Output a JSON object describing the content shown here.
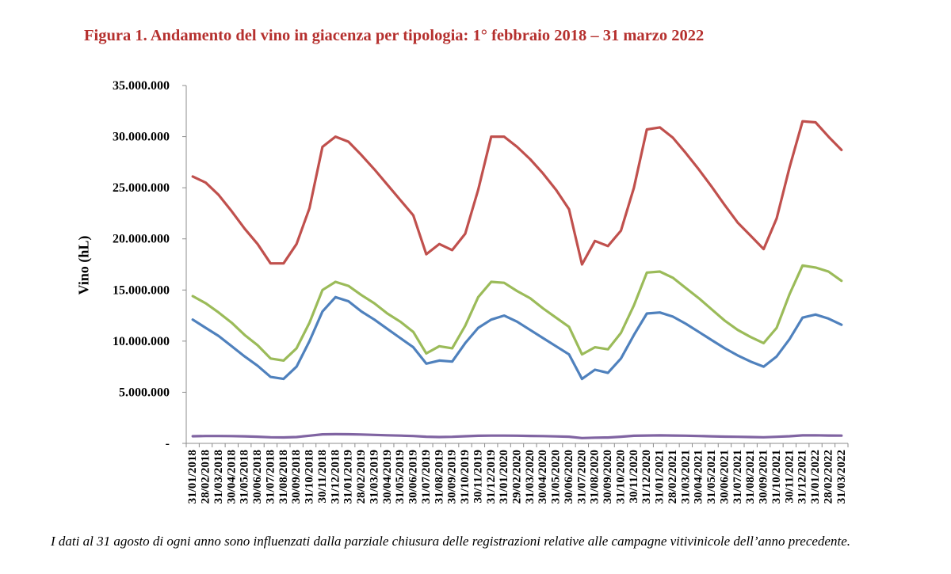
{
  "chart_data": {
    "type": "line",
    "title": "Figura 1. Andamento del vino in giacenza per tipologia: 1° febbraio 2018 – 31 marzo 2022",
    "ylabel": "Vino (hL)",
    "xlabel": "",
    "ylim": [
      0,
      35000000
    ],
    "yticks": [
      "-",
      "5.000.000",
      "10.000.000",
      "15.000.000",
      "20.000.000",
      "25.000.000",
      "30.000.000",
      "35.000.000"
    ],
    "grid": false,
    "legend": "none",
    "x_labels": [
      "31/01/2018",
      "28/02/2018",
      "31/03/2018",
      "30/04/2018",
      "31/05/2018",
      "30/06/2018",
      "31/07/2018",
      "31/08/2018",
      "30/09/2018",
      "31/10/2018",
      "30/11/2018",
      "31/12/2018",
      "31/01/2019",
      "28/02/2019",
      "31/03/2019",
      "30/04/2019",
      "31/05/2019",
      "30/06/2019",
      "31/07/2019",
      "31/08/2019",
      "30/09/2019",
      "31/10/2019",
      "30/11/2019",
      "31/12/2019",
      "31/01/2020",
      "29/02/2020",
      "31/03/2020",
      "30/04/2020",
      "31/05/2020",
      "30/06/2020",
      "31/07/2020",
      "31/08/2020",
      "30/09/2020",
      "31/10/2020",
      "30/11/2020",
      "31/12/2020",
      "31/01/2021",
      "28/02/2021",
      "31/03/2021",
      "30/04/2021",
      "31/05/2021",
      "30/06/2021",
      "31/07/2021",
      "31/08/2021",
      "30/09/2021",
      "31/10/2021",
      "30/11/2021",
      "31/12/2021",
      "31/01/2022",
      "28/02/2022",
      "31/03/2022"
    ],
    "series": [
      {
        "color": "#c0504d",
        "values": [
          26100000,
          25500000,
          24300000,
          22700000,
          21000000,
          19500000,
          17600000,
          17600000,
          19500000,
          23000000,
          29000000,
          30000000,
          29500000,
          28200000,
          26800000,
          25300000,
          23800000,
          22300000,
          18500000,
          19500000,
          18900000,
          20500000,
          24800000,
          30000000,
          30000000,
          29000000,
          27800000,
          26400000,
          24800000,
          22900000,
          17500000,
          19800000,
          19300000,
          20800000,
          25000000,
          30700000,
          30900000,
          29900000,
          28400000,
          26800000,
          25100000,
          23300000,
          21600000,
          20300000,
          19000000,
          22000000,
          27000000,
          31500000,
          31400000,
          30000000,
          28700000
        ]
      },
      {
        "color": "#9bbb59",
        "values": [
          14400000,
          13700000,
          12800000,
          11800000,
          10600000,
          9600000,
          8300000,
          8100000,
          9300000,
          11800000,
          15000000,
          15800000,
          15400000,
          14500000,
          13700000,
          12700000,
          11900000,
          10900000,
          8800000,
          9500000,
          9300000,
          11500000,
          14300000,
          15800000,
          15700000,
          14900000,
          14200000,
          13200000,
          12300000,
          11400000,
          8700000,
          9400000,
          9200000,
          10800000,
          13500000,
          16700000,
          16800000,
          16200000,
          15200000,
          14200000,
          13100000,
          12000000,
          11100000,
          10400000,
          9800000,
          11300000,
          14600000,
          17400000,
          17200000,
          16800000,
          15900000
        ]
      },
      {
        "color": "#4f81bd",
        "values": [
          12100000,
          11300000,
          10500000,
          9500000,
          8500000,
          7600000,
          6500000,
          6300000,
          7500000,
          10000000,
          12900000,
          14300000,
          13900000,
          12900000,
          12100000,
          11200000,
          10300000,
          9400000,
          7800000,
          8100000,
          8000000,
          9800000,
          11300000,
          12100000,
          12500000,
          11900000,
          11100000,
          10300000,
          9500000,
          8700000,
          6300000,
          7200000,
          6900000,
          8300000,
          10600000,
          12700000,
          12800000,
          12400000,
          11700000,
          10900000,
          10100000,
          9300000,
          8600000,
          8000000,
          7500000,
          8500000,
          10200000,
          12300000,
          12600000,
          12200000,
          11600000
        ]
      },
      {
        "color": "#8064a2",
        "values": [
          700000,
          720000,
          720000,
          710000,
          690000,
          650000,
          600000,
          580000,
          620000,
          750000,
          880000,
          900000,
          890000,
          870000,
          830000,
          790000,
          760000,
          720000,
          650000,
          620000,
          640000,
          700000,
          740000,
          760000,
          760000,
          750000,
          730000,
          710000,
          680000,
          650000,
          520000,
          560000,
          570000,
          650000,
          740000,
          770000,
          780000,
          770000,
          750000,
          720000,
          690000,
          660000,
          640000,
          620000,
          600000,
          640000,
          700000,
          780000,
          790000,
          770000,
          760000
        ]
      }
    ]
  },
  "note": "I dati al 31 agosto di ogni anno sono influenzati dalla parziale chiusura delle registrazioni relative alle campagne vitivinicole dell’anno precedente."
}
